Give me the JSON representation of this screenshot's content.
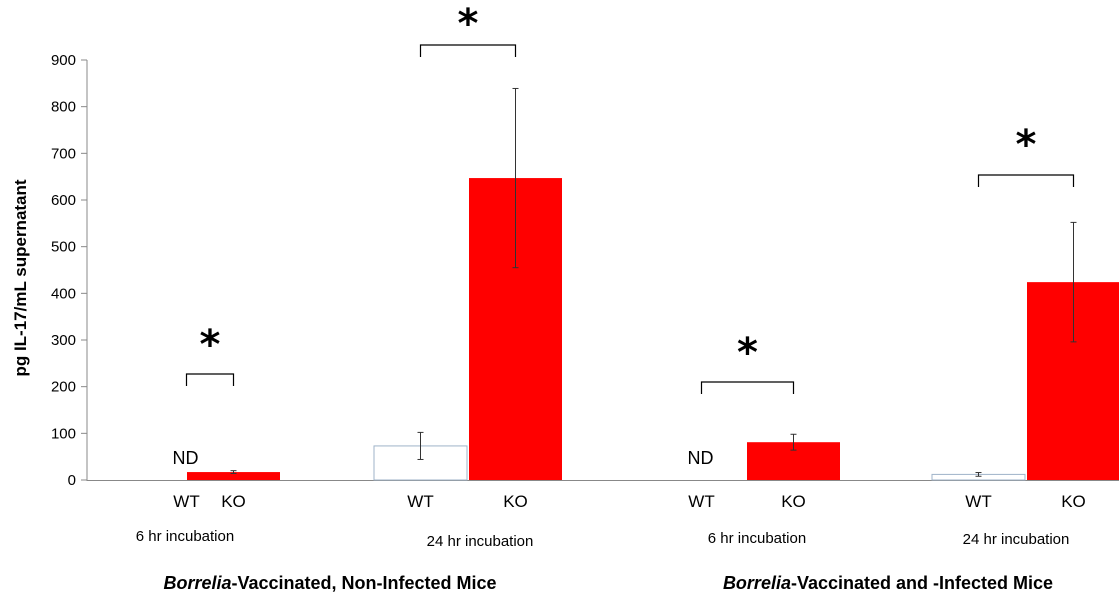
{
  "chart_data": {
    "type": "bar",
    "ylabel": "pg IL-17/mL supernatant",
    "ylim": [
      0,
      900
    ],
    "yticks": [
      0,
      100,
      200,
      300,
      400,
      500,
      600,
      700,
      800,
      900
    ],
    "grid": false,
    "legend": "none",
    "colors": {
      "WT": "#ffffff",
      "WT_border": "#9fb3c8",
      "KO": "#ff0000"
    },
    "groups": [
      {
        "title_italic": "Borrelia",
        "title_rest": "-Vaccinated, Non-Infected Mice",
        "panels": [
          {
            "condition": "6 hr incubation",
            "bars": [
              {
                "category": "WT",
                "value": 0,
                "error": 0,
                "label": "ND"
              },
              {
                "category": "KO",
                "value": 17,
                "error": 3
              }
            ],
            "significance": "*"
          },
          {
            "condition": "24 hr incubation",
            "bars": [
              {
                "category": "WT",
                "value": 73,
                "error": 29
              },
              {
                "category": "KO",
                "value": 647,
                "error": 192
              }
            ],
            "significance": "*"
          }
        ]
      },
      {
        "title_italic": "Borrelia",
        "title_rest": "-Vaccinated and -Infected Mice",
        "panels": [
          {
            "condition": "6 hr incubation",
            "bars": [
              {
                "category": "WT",
                "value": 0,
                "error": 0,
                "label": "ND"
              },
              {
                "category": "KO",
                "value": 81,
                "error": 17
              }
            ],
            "significance": "*"
          },
          {
            "condition": "24 hr incubation",
            "bars": [
              {
                "category": "WT",
                "value": 12,
                "error": 4
              },
              {
                "category": "KO",
                "value": 424,
                "error": 128
              }
            ],
            "significance": "*"
          }
        ]
      }
    ]
  }
}
